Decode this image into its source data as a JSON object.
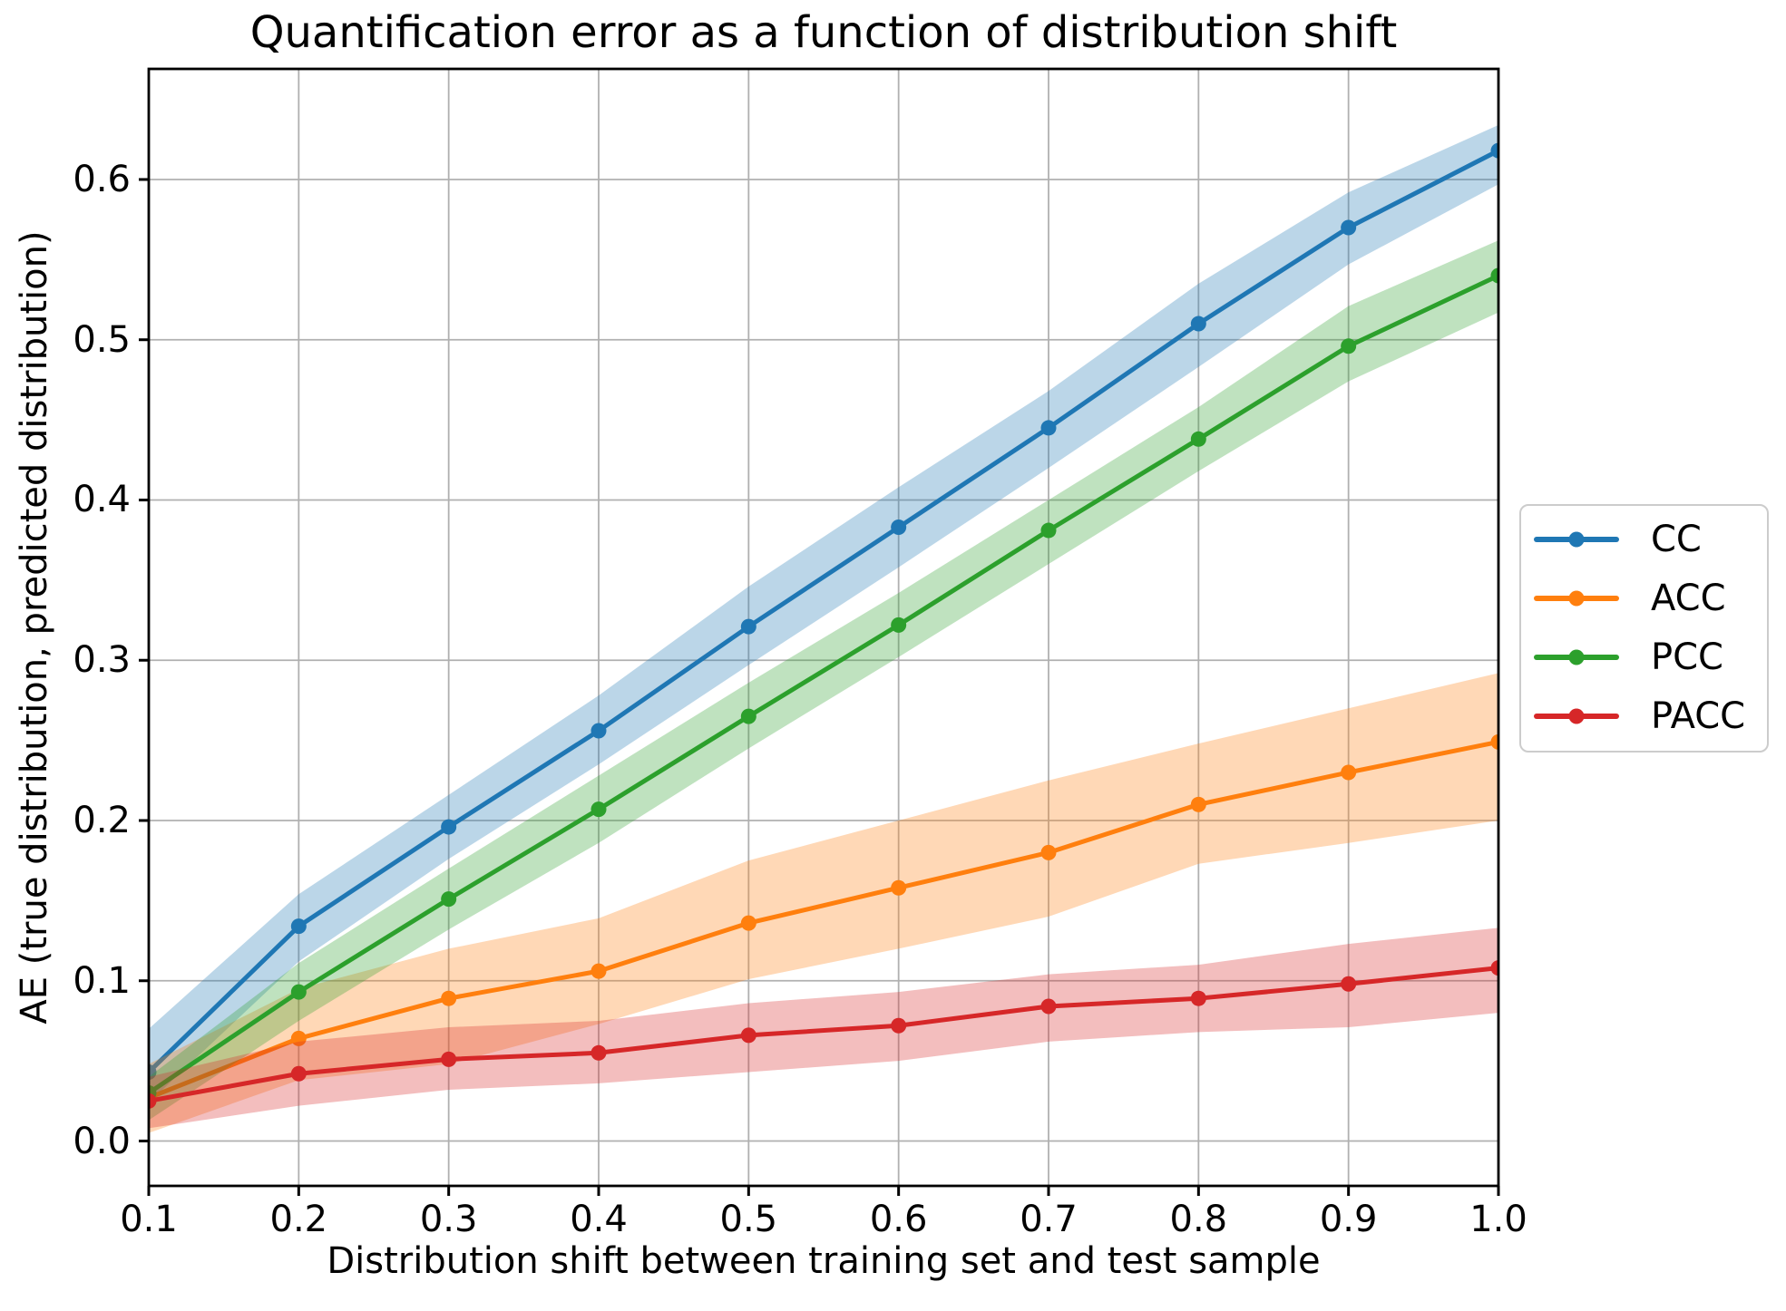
{
  "chart_data": {
    "type": "line",
    "title": "Quantification error as a function of distribution shift",
    "xlabel": "Distribution shift between training set and test sample",
    "ylabel": "AE (true distribution, predicted distribution)",
    "x": [
      0.1,
      0.2,
      0.3,
      0.4,
      0.5,
      0.6,
      0.7,
      0.8,
      0.9,
      1.0
    ],
    "xlim": [
      0.1,
      1.0
    ],
    "ylim": [
      -0.028,
      0.669
    ],
    "x_ticks": {
      "values": [
        0.1,
        0.2,
        0.3,
        0.4,
        0.5,
        0.6,
        0.7,
        0.8,
        0.9,
        1.0
      ],
      "labels": [
        "0.1",
        "0.2",
        "0.3",
        "0.4",
        "0.5",
        "0.6",
        "0.7",
        "0.8",
        "0.9",
        "1.0"
      ]
    },
    "y_ticks": {
      "values": [
        0.0,
        0.1,
        0.2,
        0.3,
        0.4,
        0.5,
        0.6
      ],
      "labels": [
        "0.0",
        "0.1",
        "0.2",
        "0.3",
        "0.4",
        "0.5",
        "0.6"
      ]
    },
    "grid": true,
    "grid_color": "#b0b0b0",
    "band_opacity": 0.3,
    "legend_position": "right of axes, vertically centered",
    "series": [
      {
        "name": "CC",
        "color": "#1f77b4",
        "values": [
          0.043,
          0.134,
          0.196,
          0.256,
          0.321,
          0.383,
          0.445,
          0.51,
          0.57,
          0.618
        ],
        "band_lower": [
          0.024,
          0.112,
          0.176,
          0.235,
          0.297,
          0.358,
          0.42,
          0.483,
          0.547,
          0.597
        ],
        "band_upper": [
          0.07,
          0.154,
          0.216,
          0.278,
          0.346,
          0.408,
          0.468,
          0.535,
          0.592,
          0.634
        ]
      },
      {
        "name": "ACC",
        "color": "#ff7f0e",
        "values": [
          0.027,
          0.064,
          0.089,
          0.106,
          0.136,
          0.158,
          0.18,
          0.21,
          0.23,
          0.249
        ],
        "band_lower": [
          0.005,
          0.038,
          0.048,
          0.073,
          0.101,
          0.12,
          0.14,
          0.173,
          0.186,
          0.2
        ],
        "band_upper": [
          0.048,
          0.095,
          0.12,
          0.139,
          0.175,
          0.2,
          0.225,
          0.248,
          0.27,
          0.292
        ]
      },
      {
        "name": "PCC",
        "color": "#2ca02c",
        "values": [
          0.03,
          0.093,
          0.151,
          0.207,
          0.265,
          0.322,
          0.381,
          0.438,
          0.496,
          0.54
        ],
        "band_lower": [
          0.013,
          0.075,
          0.132,
          0.186,
          0.245,
          0.302,
          0.36,
          0.418,
          0.474,
          0.517
        ],
        "band_upper": [
          0.04,
          0.111,
          0.17,
          0.228,
          0.286,
          0.342,
          0.4,
          0.458,
          0.521,
          0.562
        ]
      },
      {
        "name": "PACC",
        "color": "#d62728",
        "values": [
          0.025,
          0.042,
          0.051,
          0.055,
          0.066,
          0.072,
          0.084,
          0.089,
          0.098,
          0.108
        ],
        "band_lower": [
          0.008,
          0.022,
          0.032,
          0.036,
          0.043,
          0.05,
          0.062,
          0.068,
          0.071,
          0.08
        ],
        "band_upper": [
          0.04,
          0.062,
          0.071,
          0.075,
          0.086,
          0.093,
          0.104,
          0.11,
          0.123,
          0.133
        ]
      }
    ]
  }
}
